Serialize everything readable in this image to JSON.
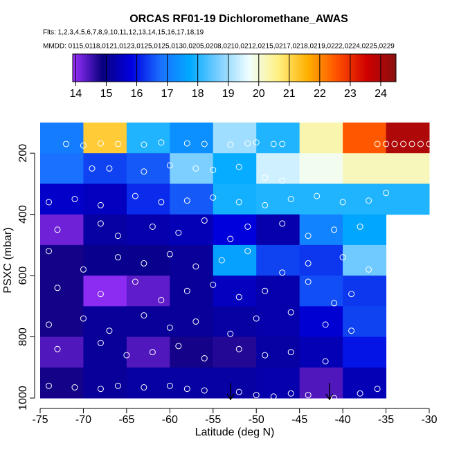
{
  "chart_data": {
    "type": "heatmap",
    "title": "ORCAS RF01-19 Dichloromethane_AWAS",
    "subtitle": "Flts: 1,2,3,4,5,6,7,8,9,10,11,12,13,14,15,16,17,18,19",
    "note": "MMDD: 0115,0118,0121,0123,0125,0125,0130,0205,0208,0210,0212,0215,0217,0218,0219,0222,0224,0225,0229",
    "xlabel": "Latitude (deg N)",
    "ylabel": "PSXC (mbar)",
    "x_edges": [
      -75,
      -70,
      -65,
      -60,
      -55,
      -50,
      -45,
      -40,
      -35,
      -30
    ],
    "y_edges": [
      100,
      200,
      300,
      400,
      500,
      600,
      700,
      800,
      900,
      1000
    ],
    "z": [
      [
        17.0,
        21.2,
        18.0,
        17.3,
        19.0,
        18.0,
        20.3,
        22.5,
        24.0
      ],
      [
        16.8,
        16.4,
        16.6,
        18.7,
        17.8,
        19.4,
        19.8,
        20.2,
        20.2
      ],
      [
        15.6,
        15.5,
        16.2,
        16.6,
        17.9,
        18.0,
        18.0,
        18.0,
        18.0
      ],
      [
        14.2,
        15.2,
        15.3,
        15.4,
        15.8,
        15.3,
        17.1,
        17.7,
        null
      ],
      [
        14.8,
        15.0,
        15.0,
        15.1,
        17.6,
        16.4,
        16.3,
        18.6,
        null
      ],
      [
        14.8,
        14.0,
        14.3,
        15.1,
        15.5,
        15.3,
        16.5,
        16.3,
        null
      ],
      [
        14.8,
        15.1,
        15.1,
        15.1,
        15.2,
        15.3,
        15.7,
        16.4,
        null
      ],
      [
        14.4,
        15.1,
        14.4,
        14.8,
        14.7,
        15.2,
        15.4,
        16.0,
        null
      ],
      [
        14.8,
        15.1,
        15.2,
        15.2,
        15.2,
        15.3,
        14.4,
        15.4,
        null
      ]
    ],
    "points": {
      "x": [
        -72,
        -70,
        -68,
        -66,
        -63,
        -61,
        -58,
        -56,
        -53,
        -51,
        -50,
        -48,
        -47,
        -36,
        -35,
        -34,
        -33,
        -32,
        -31,
        -30,
        -69,
        -67,
        -63,
        -60,
        -57,
        -55,
        -52,
        -49,
        -47,
        -74,
        -71,
        -68,
        -64,
        -61,
        -58,
        -55,
        -52,
        -49,
        -46,
        -43,
        -40,
        -37,
        -35,
        -73,
        -68,
        -66,
        -62,
        -59,
        -56,
        -53,
        -51,
        -47,
        -44,
        -41,
        -38,
        -74,
        -70,
        -66,
        -63,
        -60,
        -57,
        -54,
        -51,
        -47,
        -44,
        -40,
        -37,
        -73,
        -68,
        -64,
        -61,
        -58,
        -55,
        -52,
        -49,
        -44,
        -41,
        -39,
        -74,
        -70,
        -67,
        -63,
        -60,
        -57,
        -53,
        -50,
        -46,
        -42,
        -39,
        -73,
        -68,
        -65,
        -62,
        -59,
        -56,
        -52,
        -49,
        -46,
        -42,
        -74,
        -71,
        -68,
        -66,
        -63,
        -60,
        -58,
        -56,
        -52,
        -50,
        -48,
        -46,
        -44,
        -41,
        -38,
        -36
      ],
      "y": [
        170,
        175,
        168,
        170,
        172,
        165,
        168,
        170,
        172,
        168,
        165,
        170,
        170,
        170,
        170,
        170,
        170,
        170,
        170,
        170,
        250,
        250,
        260,
        240,
        250,
        255,
        245,
        280,
        290,
        360,
        350,
        370,
        340,
        360,
        355,
        345,
        360,
        370,
        350,
        340,
        360,
        355,
        330,
        450,
        430,
        470,
        440,
        460,
        420,
        480,
        440,
        430,
        470,
        450,
        440,
        520,
        580,
        540,
        560,
        530,
        570,
        550,
        520,
        590,
        560,
        540,
        580,
        640,
        660,
        620,
        680,
        650,
        630,
        670,
        650,
        620,
        690,
        660,
        760,
        740,
        780,
        730,
        770,
        750,
        790,
        740,
        720,
        760,
        780,
        840,
        820,
        860,
        850,
        830,
        870,
        840,
        860,
        850,
        880,
        960,
        965,
        970,
        960,
        965,
        960,
        970,
        975,
        980,
        990,
        995,
        985,
        990,
        1000,
        985,
        970
      ]
    },
    "point_color": "#ffffff",
    "colorscale": [
      "#9b30ff",
      "#0a0080",
      "#0000e0",
      "#1a70ff",
      "#00aaff",
      "#7fd0ff",
      "#f0ffff",
      "#fff080",
      "#ffb000",
      "#ff5000",
      "#d00000",
      "#8b1010"
    ],
    "zlim": [
      13.9,
      24.5
    ],
    "zticks": [
      14,
      15,
      16,
      17,
      18,
      19,
      20,
      21,
      22,
      23,
      24
    ],
    "xlim": [
      -75,
      -30
    ],
    "xticks": [
      -75,
      -70,
      -65,
      -60,
      -55,
      -50,
      -45,
      -40,
      -35,
      -30
    ],
    "ylim": [
      1000,
      100
    ],
    "yticks": [
      200,
      400,
      600,
      800,
      1000
    ]
  }
}
